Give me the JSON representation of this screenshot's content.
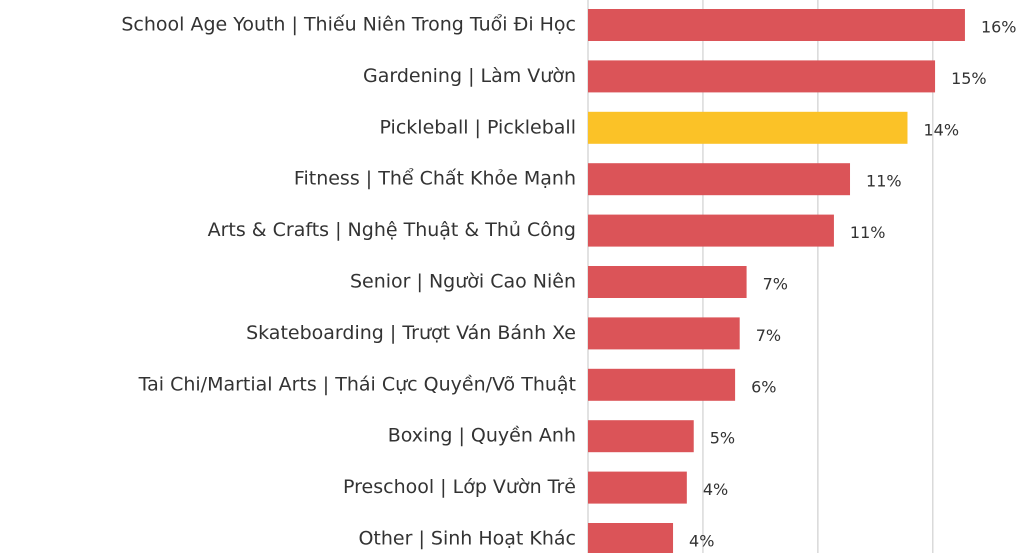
{
  "chart_data": {
    "type": "barh",
    "categories": [
      "School Age Youth | Thiếu Niên Trong Tuổi Đi Học",
      "Gardening | Làm Vườn",
      "Pickleball | Pickleball",
      "Fitness | Thể Chất Khỏe Mạnh",
      "Arts & Crafts | Nghệ Thuật & Thủ Công",
      "Senior | Người Cao Niên",
      "Skateboarding | Trượt Ván Bánh Xe",
      "Tai Chi/Martial Arts | Thái Cực Quyền/Võ Thuật",
      "Boxing | Quyền Anh",
      "Preschool | Lớp Vườn Trẻ",
      "Other | Sinh Hoạt Khác"
    ],
    "values": [
      16.4,
      15.1,
      13.9,
      11.4,
      10.7,
      6.9,
      6.6,
      6.4,
      4.6,
      4.3,
      3.7
    ],
    "value_labels": [
      "16%",
      "15%",
      "14%",
      "11%",
      "11%",
      "7%",
      "7%",
      "6%",
      "5%",
      "4%",
      "4%"
    ],
    "colors": [
      "#db5458",
      "#db5458",
      "#fbc227",
      "#db5458",
      "#db5458",
      "#db5458",
      "#db5458",
      "#db5458",
      "#db5458",
      "#db5458",
      "#db5458"
    ],
    "xlim": [
      0,
      19.1
    ],
    "xticks": [
      0,
      5,
      10,
      15
    ],
    "grid": true
  }
}
